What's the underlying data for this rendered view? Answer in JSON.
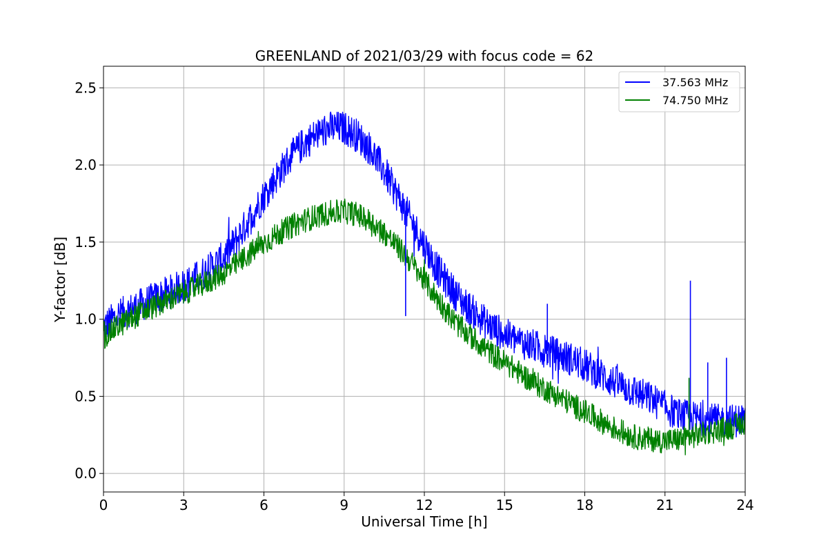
{
  "chart_data": {
    "type": "line",
    "title": "GREENLAND of 2021/03/29 with focus code = 62",
    "xlabel": "Universal Time [h]",
    "ylabel": "Y-factor [dB]",
    "xlim": [
      0,
      24
    ],
    "ylim": [
      -0.12,
      2.64
    ],
    "xticks": [
      0,
      3,
      6,
      9,
      12,
      15,
      18,
      21,
      24
    ],
    "xtick_labels": [
      "0",
      "3",
      "6",
      "9",
      "12",
      "15",
      "18",
      "21",
      "24"
    ],
    "yticks": [
      0.0,
      0.5,
      1.0,
      1.5,
      2.0,
      2.5
    ],
    "ytick_labels": [
      "0.0",
      "0.5",
      "1.0",
      "1.5",
      "2.0",
      "2.5"
    ],
    "grid": true,
    "legend_position": "top-right",
    "noise_note": "dense noisy traces; values below are the running center of each trace with observed band half-width",
    "series": [
      {
        "name": "37.563 MHz",
        "color": "#0000ff",
        "x": [
          0,
          0.5,
          1,
          1.5,
          2,
          2.5,
          3,
          3.5,
          4,
          4.5,
          5,
          5.5,
          6,
          6.5,
          7,
          7.5,
          8,
          8.5,
          9,
          9.5,
          10,
          10.5,
          11,
          11.5,
          12,
          12.5,
          13,
          13.5,
          14,
          14.5,
          15,
          15.5,
          16,
          16.5,
          17,
          17.5,
          18,
          18.5,
          19,
          19.5,
          20,
          20.5,
          21,
          21.5,
          22,
          22.5,
          23,
          23.5,
          24
        ],
        "y": [
          0.95,
          1.02,
          1.06,
          1.1,
          1.14,
          1.18,
          1.22,
          1.27,
          1.33,
          1.4,
          1.52,
          1.66,
          1.8,
          1.93,
          2.05,
          2.14,
          2.2,
          2.24,
          2.24,
          2.19,
          2.1,
          1.96,
          1.8,
          1.64,
          1.48,
          1.32,
          1.2,
          1.1,
          1.02,
          0.95,
          0.9,
          0.86,
          0.83,
          0.8,
          0.77,
          0.74,
          0.7,
          0.65,
          0.6,
          0.56,
          0.52,
          0.48,
          0.43,
          0.38,
          0.36,
          0.35,
          0.34,
          0.34,
          0.35
        ],
        "band": 0.11
      },
      {
        "name": "74.750 MHz",
        "color": "#008000",
        "x": [
          0,
          0.5,
          1,
          1.5,
          2,
          2.5,
          3,
          3.5,
          4,
          4.5,
          5,
          5.5,
          6,
          6.5,
          7,
          7.5,
          8,
          8.5,
          9,
          9.5,
          10,
          10.5,
          11,
          11.5,
          12,
          12.5,
          13,
          13.5,
          14,
          14.5,
          15,
          15.5,
          16,
          16.5,
          17,
          17.5,
          18,
          18.5,
          19,
          19.5,
          20,
          20.5,
          21,
          21.5,
          22,
          22.5,
          23,
          23.5,
          24
        ],
        "y": [
          0.88,
          0.95,
          1.0,
          1.05,
          1.09,
          1.13,
          1.17,
          1.21,
          1.25,
          1.3,
          1.36,
          1.43,
          1.49,
          1.55,
          1.6,
          1.64,
          1.67,
          1.69,
          1.7,
          1.68,
          1.63,
          1.56,
          1.47,
          1.37,
          1.25,
          1.13,
          1.01,
          0.92,
          0.85,
          0.78,
          0.72,
          0.66,
          0.6,
          0.55,
          0.5,
          0.45,
          0.4,
          0.35,
          0.3,
          0.26,
          0.23,
          0.22,
          0.21,
          0.22,
          0.24,
          0.26,
          0.28,
          0.3,
          0.33
        ],
        "band": 0.08
      }
    ],
    "spikes": [
      {
        "series": 0,
        "x": 11.3,
        "y": 1.02
      },
      {
        "series": 0,
        "x": 16.6,
        "y": 1.1
      },
      {
        "series": 0,
        "x": 21.95,
        "y": 1.25
      },
      {
        "series": 0,
        "x": 22.6,
        "y": 0.72
      },
      {
        "series": 0,
        "x": 23.3,
        "y": 0.75
      },
      {
        "series": 1,
        "x": 21.9,
        "y": 0.62
      }
    ]
  }
}
